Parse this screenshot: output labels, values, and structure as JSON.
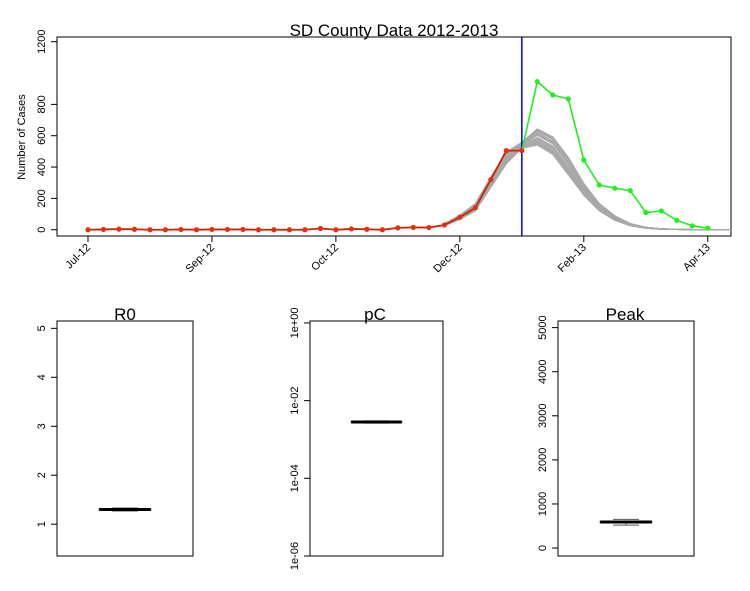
{
  "colors": {
    "observed": "#cc2200",
    "observed_marker": "#e03010",
    "forecast_actual": "#22ee22",
    "simulations": "#a9a9a9",
    "cutoff_line": "#0000dd",
    "axis": "#000000"
  },
  "chart_data": [
    {
      "type": "line",
      "title": "SD County Data 2012-2013",
      "xlabel": "",
      "ylabel": "Number of Cases",
      "x_tick_labels": [
        "Jul-12",
        "Sep-12",
        "Oct-12",
        "Dec-12",
        "Feb-13",
        "Apr-13"
      ],
      "x_tick_weeks": [
        0,
        8,
        16,
        24,
        32,
        40
      ],
      "y_ticks": [
        0,
        200,
        400,
        600,
        800,
        1200
      ],
      "y_tick_labels": [
        "0",
        "200",
        "400",
        "600",
        "800",
        "1200"
      ],
      "ylim": [
        -40,
        1230
      ],
      "xlim_weeks": [
        -2,
        41.5
      ],
      "x_unit": "week index (weekly data starting Jul-12)",
      "cutoff_week": 28,
      "series": [
        {
          "key": "observed",
          "x": [
            0,
            1,
            2,
            3,
            4,
            5,
            6,
            7,
            8,
            9,
            10,
            11,
            12,
            13,
            14,
            15,
            16,
            17,
            18,
            19,
            20,
            21,
            22,
            23,
            24,
            25,
            26,
            27,
            28
          ],
          "values": [
            0,
            2,
            4,
            3,
            0,
            0,
            2,
            0,
            2,
            2,
            2,
            0,
            0,
            0,
            0,
            8,
            0,
            5,
            3,
            0,
            12,
            15,
            14,
            30,
            80,
            140,
            320,
            505,
            505
          ]
        },
        {
          "key": "forecast_actual",
          "x": [
            28,
            29,
            30,
            31,
            32,
            33,
            34,
            35,
            36,
            37,
            38,
            39,
            40
          ],
          "values": [
            505,
            945,
            860,
            835,
            445,
            285,
            265,
            250,
            110,
            120,
            60,
            25,
            10
          ]
        },
        {
          "key": "simulations",
          "x": [
            23,
            24,
            25,
            26,
            27,
            28,
            29,
            30,
            31,
            32,
            33,
            34,
            35,
            36,
            37,
            38,
            39,
            40,
            41.5
          ],
          "values_low": [
            25,
            65,
            120,
            270,
            420,
            520,
            540,
            480,
            350,
            220,
            120,
            60,
            25,
            10,
            4,
            2,
            1,
            0,
            0
          ],
          "values_high": [
            40,
            95,
            170,
            340,
            500,
            560,
            650,
            600,
            470,
            300,
            170,
            90,
            40,
            15,
            6,
            3,
            1,
            0,
            0
          ]
        }
      ]
    },
    {
      "type": "box",
      "title": "R0",
      "ylim": [
        0.35,
        5.15
      ],
      "y_ticks": [
        1,
        2,
        3,
        4,
        5
      ],
      "y_tick_labels": [
        "1",
        "2",
        "3",
        "4",
        "5"
      ],
      "median": 1.3,
      "q1": 1.29,
      "q3": 1.31,
      "whisker_low": 1.27,
      "whisker_high": 1.33
    },
    {
      "type": "box",
      "title": "pC",
      "scale": "log10",
      "ylim_log10": [
        -6,
        0.05
      ],
      "y_ticks_log10": [
        -6,
        -4,
        -2,
        0
      ],
      "y_tick_labels": [
        "1e-06",
        "1e-04",
        "1e-02",
        "1e+00"
      ],
      "median_log10": -2.55,
      "q1_log10": -2.57,
      "q3_log10": -2.53,
      "whisker_low_log10": -2.58,
      "whisker_high_log10": -2.52
    },
    {
      "type": "box",
      "title": "Peak",
      "ylim": [
        -180,
        5150
      ],
      "y_ticks": [
        0,
        1000,
        2000,
        3000,
        4000,
        5000
      ],
      "y_tick_labels": [
        "0",
        "1000",
        "2000",
        "3000",
        "4000",
        "5000"
      ],
      "median": 590,
      "q1": 575,
      "q3": 610,
      "whisker_low": 520,
      "whisker_high": 650
    }
  ]
}
